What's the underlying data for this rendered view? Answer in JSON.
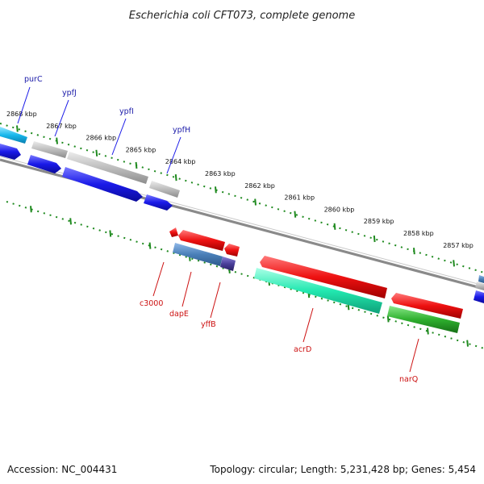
{
  "title": "Escherichia coli CFT073, complete genome",
  "footer": {
    "accession": "Accession: NC_004431",
    "info": "Topology: circular; Length: 5,231,428 bp; Genes: 5,454"
  },
  "colors": {
    "backbone": "#8a8a8a",
    "ticks": "#1f8a1f",
    "forward_label": "#1a1aa8",
    "reverse_label": "#cc1111",
    "cyan": "#18b8ec",
    "blue": "#1a1ae8",
    "gray": "#bdbdbd",
    "red": "#ee1111",
    "steel": "#4a7fb8",
    "purple": "#4a3f9a",
    "teal": "#22e8b0",
    "green": "#2fb02f"
  },
  "scale_labels": [
    "2868 kbp",
    "2867 kbp",
    "2866 kbp",
    "2865 kbp",
    "2864 kbp",
    "2863 kbp",
    "2862 kbp",
    "2861 kbp",
    "2860 kbp",
    "2859 kbp",
    "2858 kbp",
    "2857 kbp"
  ],
  "gene_labels": {
    "forward": [
      "purC",
      "ypfJ",
      "ypfI",
      "ypfH"
    ],
    "reverse": [
      "c3000",
      "dapE",
      "yffB",
      "acrD",
      "narQ"
    ]
  }
}
